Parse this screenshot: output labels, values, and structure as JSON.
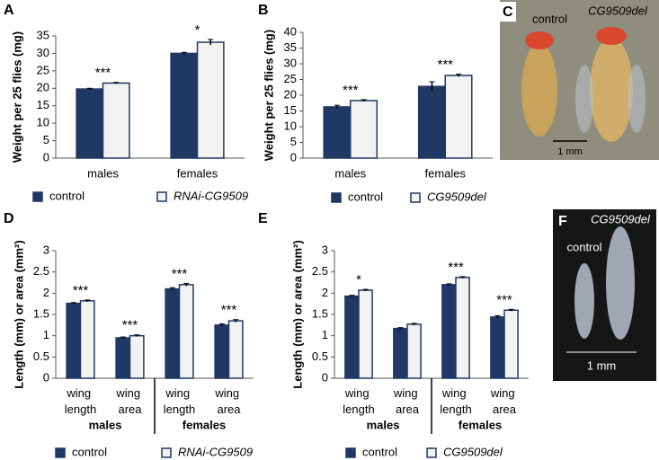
{
  "chart_data": [
    {
      "type": "bar",
      "panel": "A",
      "ylabel": "Weight per 25 flies (mg)",
      "categories": [
        "males",
        "females"
      ],
      "series": [
        {
          "name": "control",
          "color": "#1f3864",
          "values": [
            19.8,
            30
          ],
          "errors": [
            0.2,
            0.3
          ]
        },
        {
          "name": "RNAi-CG9509",
          "color": "#f2f2f2",
          "values": [
            21.5,
            33.2
          ],
          "errors": [
            0.2,
            0.8
          ]
        }
      ],
      "annotations": [
        "***",
        "*"
      ],
      "ylim": [
        0,
        35
      ],
      "yticks": [
        0,
        5,
        10,
        15,
        20,
        25,
        30,
        35
      ]
    },
    {
      "type": "bar",
      "panel": "B",
      "ylabel": "Weight per 25 flies (mg)",
      "categories": [
        "males",
        "females"
      ],
      "series": [
        {
          "name": "control",
          "color": "#1f3864",
          "values": [
            16.3,
            22.8
          ],
          "errors": [
            0.5,
            1.5
          ]
        },
        {
          "name": "CG9509del",
          "color": "#f2f2f2",
          "values": [
            18.3,
            26.3
          ],
          "errors": [
            0.3,
            0.4
          ]
        }
      ],
      "annotations": [
        "***",
        "***"
      ],
      "ylim": [
        0,
        40
      ],
      "yticks": [
        0,
        5,
        10,
        15,
        20,
        25,
        30,
        35,
        40
      ]
    },
    {
      "type": "bar",
      "panel": "D",
      "ylabel": "Length (mm) or area (mm²)",
      "categories": [
        "wing length",
        "wing area",
        "wing length",
        "wing area"
      ],
      "groups": [
        "males",
        "females"
      ],
      "series": [
        {
          "name": "control",
          "color": "#1f3864",
          "values": [
            1.76,
            0.95,
            2.1,
            1.25
          ],
          "errors": [
            0.02,
            0.02,
            0.03,
            0.03
          ]
        },
        {
          "name": "RNAi-CG9509",
          "color": "#f2f2f2",
          "values": [
            1.82,
            1.0,
            2.2,
            1.35
          ],
          "errors": [
            0.02,
            0.02,
            0.03,
            0.03
          ]
        }
      ],
      "annotations": [
        "***",
        "***",
        "***",
        "***"
      ],
      "ylim": [
        0,
        3
      ],
      "yticks": [
        0,
        0.5,
        1,
        1.5,
        2,
        2.5,
        3
      ]
    },
    {
      "type": "bar",
      "panel": "E",
      "ylabel": "Length (mm) or area (mm²)",
      "categories": [
        "wing length",
        "wing area",
        "wing length",
        "wing area"
      ],
      "groups": [
        "males",
        "females"
      ],
      "series": [
        {
          "name": "control",
          "color": "#1f3864",
          "values": [
            1.93,
            1.17,
            2.2,
            1.44
          ],
          "errors": [
            0.02,
            0.02,
            0.02,
            0.03
          ]
        },
        {
          "name": "CG9509del",
          "color": "#f2f2f2",
          "values": [
            2.07,
            1.27,
            2.37,
            1.6
          ],
          "errors": [
            0.02,
            0.02,
            0.02,
            0.02
          ]
        }
      ],
      "annotations": [
        "*",
        null,
        "***",
        "***"
      ],
      "ylim": [
        0,
        3
      ],
      "yticks": [
        0,
        0.5,
        1,
        1.5,
        2,
        2.5,
        3
      ]
    }
  ],
  "images": [
    {
      "letter": "C",
      "labels": [
        "control",
        "CG9509del"
      ],
      "scale": "1 mm"
    },
    {
      "letter": "F",
      "labels": [
        "control",
        "CG9509del"
      ],
      "scale": "1 mm"
    }
  ]
}
